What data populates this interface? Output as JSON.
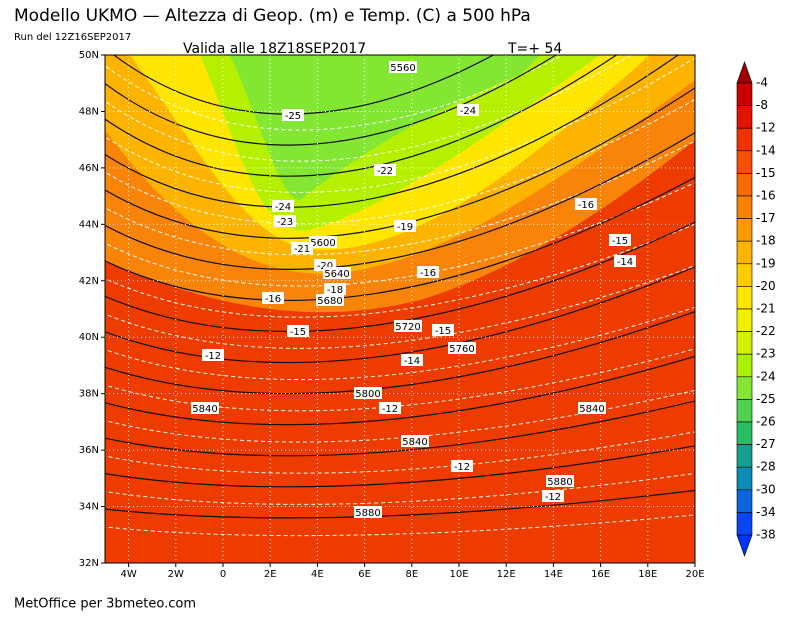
{
  "header": {
    "title": "Modello UKMO — Altezza di Geop. (m) e Temp. (C) a 500 hPa",
    "run": "Run del 12Z16SEP2017",
    "valid": "Valida alle 18Z18SEP2017",
    "step": "T=+ 54"
  },
  "map": {
    "lat_ticks": [
      "50N",
      "48N",
      "46N",
      "44N",
      "42N",
      "40N",
      "38N",
      "36N",
      "34N",
      "32N"
    ],
    "lon_ticks": [
      "4W",
      "2W",
      "0",
      "2E",
      "4E",
      "6E",
      "8E",
      "10E",
      "12E",
      "14E",
      "16E",
      "18E",
      "20E"
    ],
    "contour_labels": [
      "5560",
      "-25",
      "-24",
      "-22",
      "-24",
      "-23",
      "-19",
      "-16",
      "5600",
      "-21",
      "-15",
      "-14",
      "-20",
      "-16",
      "5640",
      "-18",
      "-16",
      "5680",
      "5720",
      "-15",
      "-15",
      "5760",
      "-12",
      "-14",
      "5800",
      "5840",
      "-12",
      "5840",
      "5840",
      "-12",
      "5880",
      "-12",
      "5880"
    ]
  },
  "colorbar": {
    "labels": [
      "-4",
      "-8",
      "-12",
      "-14",
      "-15",
      "-16",
      "-17",
      "-18",
      "-19",
      "-20",
      "-21",
      "-22",
      "-23",
      "-24",
      "-25",
      "-26",
      "-27",
      "-28",
      "-30",
      "-34",
      "-38"
    ]
  },
  "footer": "MetOffice per 3bmeteo.com"
}
